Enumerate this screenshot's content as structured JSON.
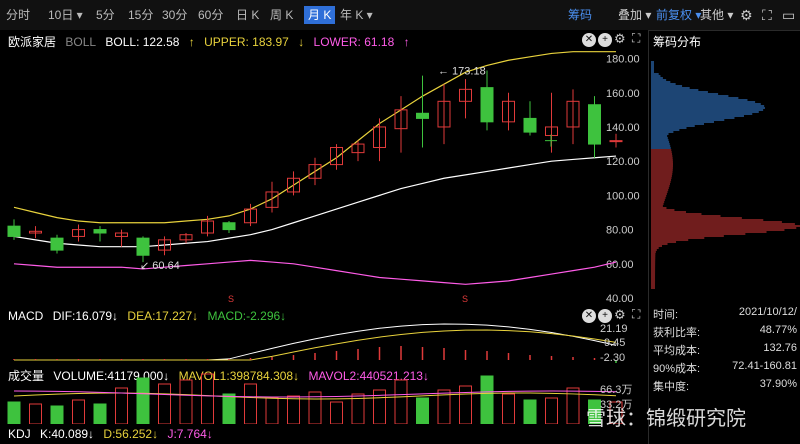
{
  "toolbar": {
    "periods": [
      "分时",
      "10日 ▾",
      "5分",
      "15分",
      "30分",
      "60分",
      "日 K",
      "周 K",
      "月 K",
      "年 K ▾"
    ],
    "selected_index": 8,
    "chip": "筹码",
    "overlay": "叠加 ▾",
    "adjust": "前复权 ▾",
    "other": "其他 ▾"
  },
  "stock": {
    "name": "欧派家居",
    "indicator": "BOLL",
    "boll": "BOLL: 122.58",
    "upper": "UPPER: 183.97",
    "lower": "LOWER: 61.18",
    "high_mark": "173.18",
    "low_mark": "60.64",
    "marker": "S"
  },
  "y_axis": [
    "180.00",
    "160.00",
    "140.00",
    "120.00",
    "100.00",
    "80.00",
    "60.00",
    "40.00"
  ],
  "macd": {
    "name": "MACD",
    "dif": "DIF:16.079↓",
    "dea": "DEA:17.227↓",
    "macd": "MACD:-2.296↓",
    "ticks": [
      "21.19",
      "9.45",
      "-2.30"
    ]
  },
  "volume": {
    "name": "成交量",
    "vol": "VOLUME:41179.000↓",
    "mavol1": "MAVOL1:398784.308↓",
    "mavol2": "MAVOL2:440521.213↓",
    "ticks": [
      "66.3万",
      "33.2万"
    ]
  },
  "kdj": {
    "name": "KDJ",
    "k": "K:40.089↓",
    "d": "D:56.252↓",
    "j": "J:7.764↓"
  },
  "right": {
    "title": "筹码分布",
    "rows": [
      {
        "label": "时间:",
        "value": "2021/10/12/"
      },
      {
        "label": "获利比率:",
        "value": "48.77%"
      },
      {
        "label": "平均成本:",
        "value": "132.76"
      },
      {
        "label": "90%成本:",
        "value": "72.41-160.81"
      },
      {
        "label": "集中度:",
        "value": "37.90%"
      }
    ]
  },
  "watermark": "雪球：锦缎研究院",
  "colors": {
    "up": "#e03a3a",
    "down": "#3ec23e",
    "upper": "#e8d23c",
    "lower": "#ff5ce8",
    "boll": "#ffffff",
    "accent": "#2f6fd8"
  },
  "chart_data": {
    "type": "candlestick",
    "candles": [
      {
        "o": 82,
        "c": 76,
        "h": 86,
        "l": 74
      },
      {
        "o": 78,
        "c": 79,
        "h": 82,
        "l": 75
      },
      {
        "o": 75,
        "c": 68,
        "h": 77,
        "l": 66
      },
      {
        "o": 76,
        "c": 80,
        "h": 83,
        "l": 73
      },
      {
        "o": 80,
        "c": 78,
        "h": 82,
        "l": 73
      },
      {
        "o": 76,
        "c": 78,
        "h": 80,
        "l": 70
      },
      {
        "o": 75,
        "c": 65,
        "h": 76,
        "l": 61
      },
      {
        "o": 68,
        "c": 74,
        "h": 76,
        "l": 65
      },
      {
        "o": 74,
        "c": 77,
        "h": 78,
        "l": 72
      },
      {
        "o": 78,
        "c": 85,
        "h": 88,
        "l": 76
      },
      {
        "o": 84,
        "c": 80,
        "h": 85,
        "l": 78
      },
      {
        "o": 84,
        "c": 92,
        "h": 95,
        "l": 82
      },
      {
        "o": 93,
        "c": 102,
        "h": 108,
        "l": 90
      },
      {
        "o": 102,
        "c": 110,
        "h": 114,
        "l": 100
      },
      {
        "o": 110,
        "c": 118,
        "h": 122,
        "l": 106
      },
      {
        "o": 118,
        "c": 128,
        "h": 130,
        "l": 115
      },
      {
        "o": 125,
        "c": 130,
        "h": 132,
        "l": 120
      },
      {
        "o": 128,
        "c": 140,
        "h": 145,
        "l": 120
      },
      {
        "o": 139,
        "c": 150,
        "h": 158,
        "l": 125
      },
      {
        "o": 148,
        "c": 145,
        "h": 170,
        "l": 128
      },
      {
        "o": 140,
        "c": 155,
        "h": 165,
        "l": 130
      },
      {
        "o": 155,
        "c": 162,
        "h": 168,
        "l": 145
      },
      {
        "o": 163,
        "c": 143,
        "h": 173,
        "l": 138
      },
      {
        "o": 143,
        "c": 155,
        "h": 160,
        "l": 138
      },
      {
        "o": 145,
        "c": 137,
        "h": 155,
        "l": 135
      },
      {
        "o": 135,
        "c": 140,
        "h": 160,
        "l": 125
      },
      {
        "o": 140,
        "c": 155,
        "h": 162,
        "l": 130
      },
      {
        "o": 153,
        "c": 130,
        "h": 158,
        "l": 122
      },
      {
        "o": 132,
        "c": 132,
        "h": 136,
        "l": 128
      }
    ],
    "ylim": [
      40,
      185
    ]
  }
}
